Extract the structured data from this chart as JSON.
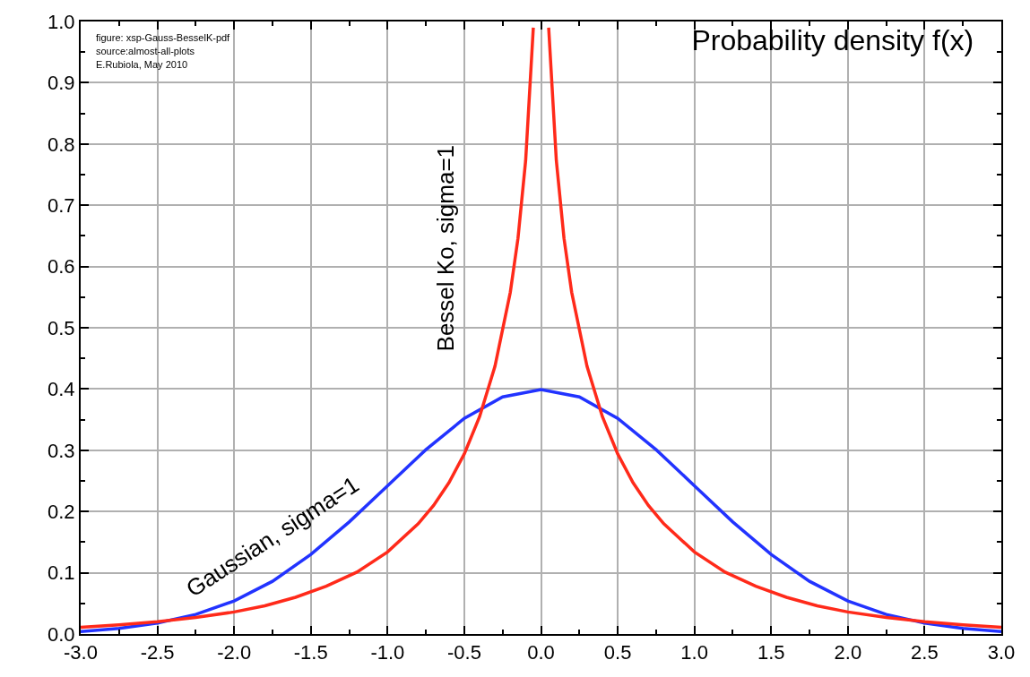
{
  "chart_data": {
    "type": "line",
    "title": "Probability density f(x)",
    "annotations": [
      "figure: xsp-Gauss-BesselK-pdf",
      "source:almost-all-plots",
      "E.Rubiola, May 2010"
    ],
    "series": [
      {
        "name": "Gaussian, sigma=1",
        "color": "#2233ff",
        "x": [
          -3,
          -2.75,
          -2.5,
          -2.25,
          -2,
          -1.75,
          -1.5,
          -1.25,
          -1,
          -0.75,
          -0.5,
          -0.25,
          0,
          0.25,
          0.5,
          0.75,
          1,
          1.25,
          1.5,
          1.75,
          2,
          2.25,
          2.5,
          2.75,
          3
        ],
        "values": [
          0.004,
          0.009,
          0.018,
          0.032,
          0.054,
          0.086,
          0.13,
          0.183,
          0.242,
          0.301,
          0.352,
          0.387,
          0.399,
          0.387,
          0.352,
          0.301,
          0.242,
          0.183,
          0.13,
          0.086,
          0.054,
          0.032,
          0.018,
          0.009,
          0.004
        ]
      },
      {
        "name": "Bessel Ko, sigma=1",
        "color": "#ff2a1a",
        "x": [
          -3,
          -2.75,
          -2.5,
          -2.25,
          -2,
          -1.8,
          -1.6,
          -1.4,
          -1.2,
          -1,
          -0.8,
          -0.7,
          -0.6,
          -0.5,
          -0.4,
          -0.3,
          -0.2,
          -0.15,
          -0.1,
          -0.05,
          0,
          0.05,
          0.1,
          0.15,
          0.2,
          0.3,
          0.4,
          0.5,
          0.6,
          0.7,
          0.8,
          1,
          1.2,
          1.4,
          1.6,
          1.8,
          2,
          2.25,
          2.5,
          2.75,
          3
        ],
        "values": [
          0.011,
          0.015,
          0.02,
          0.027,
          0.036,
          0.046,
          0.06,
          0.078,
          0.101,
          0.134,
          0.18,
          0.21,
          0.247,
          0.294,
          0.355,
          0.437,
          0.558,
          0.646,
          0.773,
          0.99,
          null,
          0.99,
          0.773,
          0.646,
          0.558,
          0.437,
          0.355,
          0.294,
          0.247,
          0.21,
          0.18,
          0.134,
          0.101,
          0.078,
          0.06,
          0.046,
          0.036,
          0.027,
          0.02,
          0.015,
          0.011
        ]
      }
    ],
    "xlim": [
      -3,
      3
    ],
    "xticks": [
      {
        "value": -3,
        "label": "-3.0"
      },
      {
        "value": -2.5,
        "label": "-2.5"
      },
      {
        "value": -2,
        "label": "-2.0"
      },
      {
        "value": -1.5,
        "label": "-1.5"
      },
      {
        "value": -1,
        "label": "-1.0"
      },
      {
        "value": -0.5,
        "label": "-0.5"
      },
      {
        "value": 0,
        "label": "0.0"
      },
      {
        "value": 0.5,
        "label": "0.5"
      },
      {
        "value": 1,
        "label": "1.0"
      },
      {
        "value": 1.5,
        "label": "1.5"
      },
      {
        "value": 2,
        "label": "2.0"
      },
      {
        "value": 2.5,
        "label": "2.5"
      },
      {
        "value": 3,
        "label": "3.0"
      }
    ],
    "ylim": [
      0,
      1
    ],
    "yticks": [
      {
        "value": 0,
        "label": "0.0"
      },
      {
        "value": 0.1,
        "label": "0.1"
      },
      {
        "value": 0.2,
        "label": "0.2"
      },
      {
        "value": 0.3,
        "label": "0.3"
      },
      {
        "value": 0.4,
        "label": "0.4"
      },
      {
        "value": 0.5,
        "label": "0.5"
      },
      {
        "value": 0.6,
        "label": "0.6"
      },
      {
        "value": 0.7,
        "label": "0.7"
      },
      {
        "value": 0.8,
        "label": "0.8"
      },
      {
        "value": 0.9,
        "label": "0.9"
      },
      {
        "value": 1,
        "label": "1.0"
      }
    ],
    "grid": true,
    "legend": false,
    "marker": "none",
    "line_style": "solid"
  }
}
